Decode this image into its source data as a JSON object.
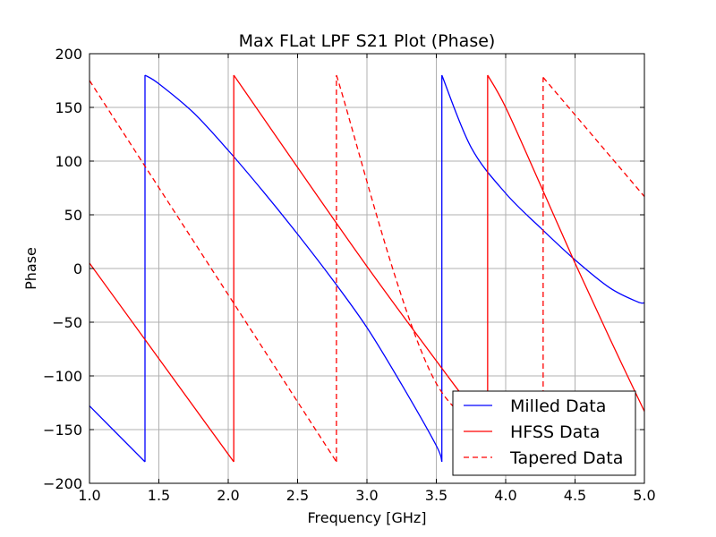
{
  "chart_data": {
    "type": "line",
    "title": "Max FLat LPF S21 Plot (Phase)",
    "xlabel": "Frequency [GHz]",
    "ylabel": "Phase",
    "xlim": [
      1.0,
      5.0
    ],
    "ylim": [
      -200,
      200
    ],
    "xticks": [
      1.0,
      1.5,
      2.0,
      2.5,
      3.0,
      3.5,
      4.0,
      4.5,
      5.0
    ],
    "xtick_labels": [
      "1.0",
      "1.5",
      "2.0",
      "2.5",
      "3.0",
      "3.5",
      "4.0",
      "4.5",
      "5.0"
    ],
    "yticks": [
      200,
      150,
      100,
      50,
      0,
      -50,
      -100,
      -150,
      -200
    ],
    "ytick_labels": [
      "200",
      "150",
      "100",
      "50",
      "0",
      "−50",
      "−100",
      "−150",
      "−200"
    ],
    "grid": true,
    "legend_position": "lower-right",
    "series": [
      {
        "name": "Milled Data",
        "color": "#0000ff",
        "dash": "solid",
        "x": [
          1.0,
          1.4,
          1.4,
          1.5,
          1.75,
          2.0,
          2.25,
          2.5,
          2.75,
          3.0,
          3.25,
          3.5,
          3.54,
          3.54,
          3.75,
          4.0,
          4.25,
          4.5,
          4.75,
          4.95,
          5.0
        ],
        "y": [
          -128,
          -180,
          180,
          172,
          145,
          110,
          72,
          32,
          -10,
          -55,
          -108,
          -165,
          -180,
          180,
          113,
          70,
          38,
          8,
          -18,
          -31,
          -32
        ]
      },
      {
        "name": "HFSS Data",
        "color": "#ff0000",
        "dash": "solid",
        "x": [
          1.0,
          2.04,
          2.04,
          3.0,
          3.87,
          3.87,
          4.0,
          4.25,
          4.5,
          4.75,
          5.0
        ],
        "y": [
          5,
          -180,
          180,
          2,
          -150,
          180,
          150,
          78,
          5,
          -65,
          -133
        ]
      },
      {
        "name": "Tapered Data",
        "color": "#ff0000",
        "dash": "dashed",
        "x": [
          1.0,
          2.78,
          2.78,
          3.5,
          4.27,
          4.27,
          5.0
        ],
        "y": [
          175,
          -180,
          180,
          -107,
          -160,
          178,
          67
        ]
      }
    ]
  }
}
